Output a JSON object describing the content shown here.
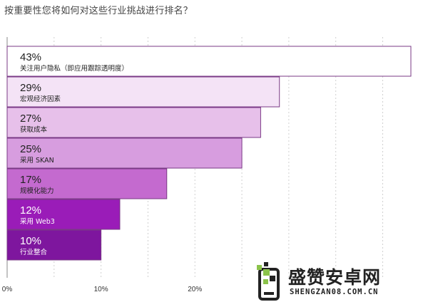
{
  "question": "按重要性您将如何对这些行业挑战进行排名？",
  "chart_data": {
    "type": "bar",
    "orientation": "horizontal",
    "title": "按重要性您将如何对这些行业挑战进行排名？",
    "categories": [
      "关注用户隐私（即应用跟踪透明度）",
      "宏观经济因素",
      "获取成本",
      "采用 SKAN",
      "规模化能力",
      "采用 Web3",
      "行业整合"
    ],
    "values": [
      43,
      29,
      27,
      25,
      17,
      12,
      10
    ],
    "value_labels": [
      "43%",
      "29%",
      "27%",
      "25%",
      "17%",
      "12%",
      "10%"
    ],
    "xlim": [
      0,
      43
    ],
    "x_ticks": [
      0,
      10,
      20
    ],
    "x_tick_labels": [
      "0%",
      "10%",
      "20%"
    ],
    "grid": true,
    "bar_colors": [
      "#ffffff",
      "#f4e3f6",
      "#e7c0ea",
      "#d79ddf",
      "#c46acf",
      "#9a1cb8",
      "#7e169e"
    ],
    "label_colors": [
      "#222222",
      "#222222",
      "#222222",
      "#222222",
      "#222222",
      "#ffffff",
      "#ffffff"
    ]
  },
  "watermark": {
    "text_cn": "盛赞安卓网",
    "text_en": "SHENGZAN08.COM.CN"
  }
}
